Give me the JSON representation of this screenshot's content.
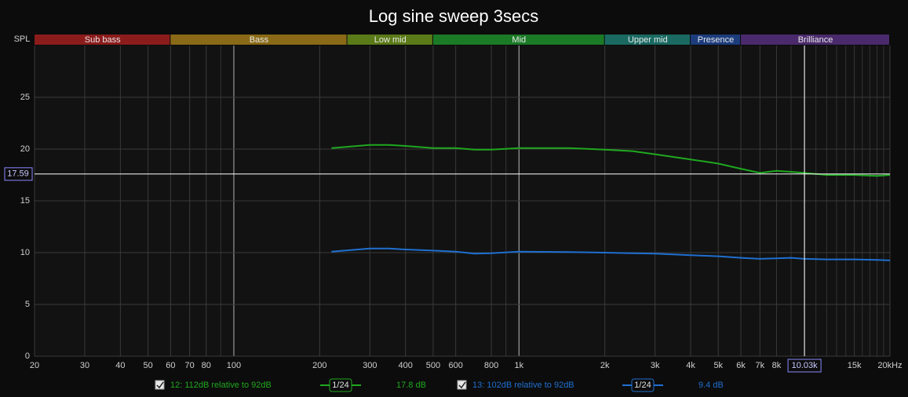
{
  "chart_data": {
    "type": "line",
    "title": "Log sine sweep 3secs",
    "ylabel": "SPL",
    "log_x": true,
    "grid": true,
    "xlim": [
      20,
      20000
    ],
    "ylim": [
      0,
      30
    ],
    "xticks": [
      20,
      30,
      40,
      50,
      60,
      70,
      80,
      100,
      200,
      300,
      400,
      500,
      600,
      800,
      {
        "value": 1000,
        "label": "1k"
      },
      {
        "value": 2000,
        "label": "2k"
      },
      {
        "value": 3000,
        "label": "3k"
      },
      {
        "value": 4000,
        "label": "4k"
      },
      {
        "value": 5000,
        "label": "5k"
      },
      {
        "value": 6000,
        "label": "6k"
      },
      {
        "value": 7000,
        "label": "7k"
      },
      {
        "value": 8000,
        "label": "8k"
      },
      {
        "value": 15000,
        "label": "15k"
      },
      {
        "value": 20000,
        "label": "20kHz"
      }
    ],
    "xgrid_minor": [
      90,
      900,
      9000,
      10000,
      11000,
      12000,
      13000,
      14000,
      16000,
      17000,
      18000,
      19000
    ],
    "xgrid_major": [
      100,
      1000
    ],
    "yticks": [
      0,
      5,
      10,
      15,
      20,
      25
    ],
    "bands": [
      {
        "name": "Sub bass",
        "from": 20,
        "to": 60,
        "color": "#8c1c1c"
      },
      {
        "name": "Bass",
        "from": 60,
        "to": 250,
        "color": "#8a6a16"
      },
      {
        "name": "Low mid",
        "from": 250,
        "to": 500,
        "color": "#5b7a18"
      },
      {
        "name": "Mid",
        "from": 500,
        "to": 2000,
        "color": "#1b7a26"
      },
      {
        "name": "Upper mid",
        "from": 2000,
        "to": 4000,
        "color": "#1a6a62"
      },
      {
        "name": "Presence",
        "from": 4000,
        "to": 6000,
        "color": "#1c3c7c"
      },
      {
        "name": "Brilliance",
        "from": 6000,
        "to": 20000,
        "color": "#4a2a6c"
      }
    ],
    "cursor": {
      "x": {
        "value": 10030,
        "label": "10.03k"
      },
      "y": 17.59
    },
    "x": [
      220,
      300,
      350,
      400,
      500,
      600,
      700,
      800,
      1000,
      1500,
      2000,
      2500,
      3000,
      4000,
      5000,
      6000,
      7000,
      8000,
      9000,
      10000,
      12000,
      15000,
      18000,
      20000
    ],
    "series": [
      {
        "name": "12: 112dB relative to 92dB",
        "color": "#1fa81f",
        "smoothing": "1/24",
        "readout": "17.8 dB",
        "values": [
          20.1,
          20.4,
          20.4,
          20.3,
          20.1,
          20.1,
          19.95,
          19.95,
          20.1,
          20.1,
          19.95,
          19.8,
          19.5,
          19.0,
          18.6,
          18.1,
          17.7,
          17.9,
          17.8,
          17.7,
          17.5,
          17.5,
          17.4,
          17.5
        ]
      },
      {
        "name": "13: 102dB relative to 92dB",
        "color": "#1f6fd0",
        "smoothing": "1/24",
        "readout": "9.4 dB",
        "values": [
          10.1,
          10.4,
          10.4,
          10.3,
          10.2,
          10.1,
          9.9,
          9.95,
          10.1,
          10.05,
          10.0,
          9.95,
          9.9,
          9.75,
          9.65,
          9.5,
          9.4,
          9.45,
          9.5,
          9.4,
          9.35,
          9.35,
          9.3,
          9.25
        ]
      }
    ]
  }
}
